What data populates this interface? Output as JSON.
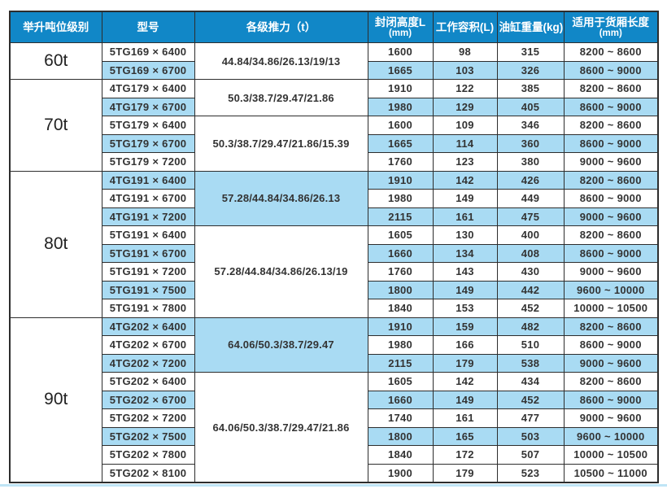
{
  "colors": {
    "header_bg": "#1187c7",
    "header_text": "#ffffff",
    "row_shaded_bg": "#a9dbf3",
    "row_plain_bg": "#ffffff",
    "grid_border": "#2d2d2d",
    "body_text": "#333333",
    "bottom_rule": "#bfe5f6"
  },
  "table": {
    "headers": [
      {
        "label": "举升吨位级别",
        "sub": ""
      },
      {
        "label": "型号",
        "sub": ""
      },
      {
        "label": "各级推力（t）",
        "sub": ""
      },
      {
        "label": "封闭高度L",
        "sub": "(mm)"
      },
      {
        "label": "工作容积(L)",
        "sub": ""
      },
      {
        "label": "油缸重量(kg)",
        "sub": ""
      },
      {
        "label": "适用于货厢长度",
        "sub": "(mm)"
      }
    ],
    "groups": [
      {
        "tonnage": "60t",
        "thrust_blocks": [
          {
            "value": "44.84/34.86/26.13/19/13",
            "span": 2,
            "shaded": false
          }
        ],
        "rows": [
          {
            "model": "5TG169 × 6400",
            "closed_height": "1600",
            "volume": "98",
            "weight": "315",
            "box_length": "8200 ~ 8600",
            "shaded": false
          },
          {
            "model": "5TG169 × 6700",
            "closed_height": "1665",
            "volume": "103",
            "weight": "326",
            "box_length": "8600 ~ 9000",
            "shaded": true
          }
        ]
      },
      {
        "tonnage": "70t",
        "thrust_blocks": [
          {
            "value": "50.3/38.7/29.47/21.86",
            "span": 2,
            "shaded": false
          },
          {
            "value": "50.3/38.7/29.47/21.86/15.39",
            "span": 3,
            "shaded": false
          }
        ],
        "rows": [
          {
            "model": "4TG179 × 6400",
            "closed_height": "1910",
            "volume": "122",
            "weight": "385",
            "box_length": "8200 ~ 8600",
            "shaded": false
          },
          {
            "model": "4TG179 × 6700",
            "closed_height": "1980",
            "volume": "129",
            "weight": "405",
            "box_length": "8600 ~ 9000",
            "shaded": true
          },
          {
            "model": "5TG179 × 6400",
            "closed_height": "1600",
            "volume": "109",
            "weight": "346",
            "box_length": "8200 ~ 8600",
            "shaded": false
          },
          {
            "model": "5TG179 × 6700",
            "closed_height": "1665",
            "volume": "114",
            "weight": "360",
            "box_length": "8600 ~ 9000",
            "shaded": true
          },
          {
            "model": "5TG179 × 7200",
            "closed_height": "1760",
            "volume": "123",
            "weight": "380",
            "box_length": "9000 ~ 9600",
            "shaded": false
          }
        ]
      },
      {
        "tonnage": "80t",
        "thrust_blocks": [
          {
            "value": "57.28/44.84/34.86/26.13",
            "span": 3,
            "shaded": true
          },
          {
            "value": "57.28/44.84/34.86/26.13/19",
            "span": 5,
            "shaded": false
          }
        ],
        "rows": [
          {
            "model": "4TG191 × 6400",
            "closed_height": "1910",
            "volume": "142",
            "weight": "426",
            "box_length": "8200 ~ 8600",
            "shaded": true
          },
          {
            "model": "4TG191 × 6700",
            "closed_height": "1980",
            "volume": "149",
            "weight": "449",
            "box_length": "8600 ~ 9000",
            "shaded": false
          },
          {
            "model": "4TG191 × 7200",
            "closed_height": "2115",
            "volume": "161",
            "weight": "475",
            "box_length": "9000 ~ 9600",
            "shaded": true
          },
          {
            "model": "5TG191 × 6400",
            "closed_height": "1605",
            "volume": "130",
            "weight": "400",
            "box_length": "8200 ~ 8600",
            "shaded": false
          },
          {
            "model": "5TG191 × 6700",
            "closed_height": "1660",
            "volume": "134",
            "weight": "408",
            "box_length": "8600 ~ 9000",
            "shaded": true
          },
          {
            "model": "5TG191 × 7200",
            "closed_height": "1760",
            "volume": "143",
            "weight": "430",
            "box_length": "9000 ~ 9600",
            "shaded": false
          },
          {
            "model": "5TG191 × 7500",
            "closed_height": "1800",
            "volume": "149",
            "weight": "442",
            "box_length": "9600 ~ 10000",
            "shaded": true
          },
          {
            "model": "5TG191 × 7800",
            "closed_height": "1840",
            "volume": "153",
            "weight": "452",
            "box_length": "10000 ~ 10500",
            "shaded": false
          }
        ]
      },
      {
        "tonnage": "90t",
        "thrust_blocks": [
          {
            "value": "64.06/50.3/38.7/29.47",
            "span": 3,
            "shaded": true
          },
          {
            "value": "64.06/50.3/38.7/29.47/21.86",
            "span": 6,
            "shaded": false
          }
        ],
        "rows": [
          {
            "model": "4TG202 × 6400",
            "closed_height": "1910",
            "volume": "159",
            "weight": "482",
            "box_length": "8200 ~ 8600",
            "shaded": true
          },
          {
            "model": "4TG202 × 6700",
            "closed_height": "1980",
            "volume": "166",
            "weight": "510",
            "box_length": "8600 ~ 9000",
            "shaded": false
          },
          {
            "model": "4TG202 × 7200",
            "closed_height": "2115",
            "volume": "179",
            "weight": "538",
            "box_length": "9000 ~ 9600",
            "shaded": true
          },
          {
            "model": "5TG202 × 6400",
            "closed_height": "1605",
            "volume": "142",
            "weight": "434",
            "box_length": "8200 ~ 8600",
            "shaded": false
          },
          {
            "model": "5TG202 × 6700",
            "closed_height": "1660",
            "volume": "149",
            "weight": "452",
            "box_length": "8600 ~ 9000",
            "shaded": true
          },
          {
            "model": "5TG202 × 7200",
            "closed_height": "1740",
            "volume": "161",
            "weight": "477",
            "box_length": "9000 ~ 9600",
            "shaded": false
          },
          {
            "model": "5TG202 × 7500",
            "closed_height": "1800",
            "volume": "165",
            "weight": "503",
            "box_length": "9600 ~ 10000",
            "shaded": true
          },
          {
            "model": "5TG202 × 7800",
            "closed_height": "1840",
            "volume": "172",
            "weight": "507",
            "box_length": "10000 ~ 10500",
            "shaded": false
          },
          {
            "model": "5TG202 × 8100",
            "closed_height": "1900",
            "volume": "179",
            "weight": "523",
            "box_length": "10500 ~ 11000",
            "shaded": false
          }
        ]
      }
    ]
  }
}
